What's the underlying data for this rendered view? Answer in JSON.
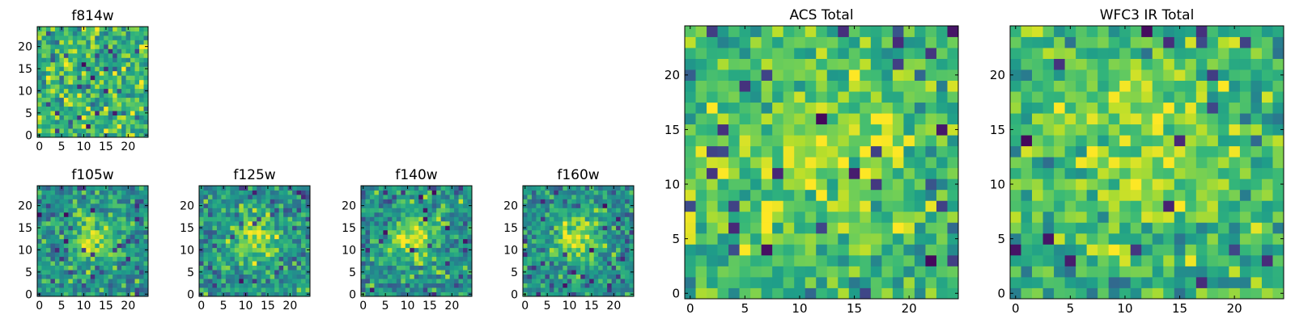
{
  "chart_data": [
    {
      "type": "heatmap",
      "title": "f814w",
      "colormap": "viridis",
      "size": 25,
      "xticks": [
        "0",
        "5",
        "10",
        "15",
        "20"
      ],
      "yticks": [
        "0",
        "5",
        "10",
        "15",
        "20"
      ],
      "pattern": "noise",
      "seed": 11
    },
    {
      "type": "heatmap",
      "title": "f105w",
      "colormap": "viridis",
      "size": 25,
      "xticks": [
        "0",
        "5",
        "10",
        "15",
        "20"
      ],
      "yticks": [
        "0",
        "5",
        "10",
        "15",
        "20"
      ],
      "pattern": "source",
      "seed": 23
    },
    {
      "type": "heatmap",
      "title": "f125w",
      "colormap": "viridis",
      "size": 25,
      "xticks": [
        "0",
        "5",
        "10",
        "15",
        "20"
      ],
      "yticks": [
        "0",
        "5",
        "10",
        "15",
        "20"
      ],
      "pattern": "source",
      "seed": 37
    },
    {
      "type": "heatmap",
      "title": "f140w",
      "colormap": "viridis",
      "size": 25,
      "xticks": [
        "0",
        "5",
        "10",
        "15",
        "20"
      ],
      "yticks": [
        "0",
        "5",
        "10",
        "15",
        "20"
      ],
      "pattern": "source",
      "seed": 41
    },
    {
      "type": "heatmap",
      "title": "f160w",
      "colormap": "viridis",
      "size": 25,
      "xticks": [
        "0",
        "5",
        "10",
        "15",
        "20"
      ],
      "yticks": [
        "0",
        "5",
        "10",
        "15",
        "20"
      ],
      "pattern": "source",
      "seed": 53
    },
    {
      "type": "heatmap",
      "title": "ACS Total",
      "colormap": "viridis",
      "size": 25,
      "xticks": [
        "0",
        "5",
        "10",
        "15",
        "20"
      ],
      "yticks": [
        "0",
        "5",
        "10",
        "15",
        "20"
      ],
      "pattern": "soft",
      "seed": 67
    },
    {
      "type": "heatmap",
      "title": "WFC3 IR Total",
      "colormap": "viridis",
      "size": 25,
      "xticks": [
        "0",
        "5",
        "10",
        "15",
        "20"
      ],
      "yticks": [
        "0",
        "5",
        "10",
        "15",
        "20"
      ],
      "pattern": "soft",
      "seed": 79
    }
  ]
}
